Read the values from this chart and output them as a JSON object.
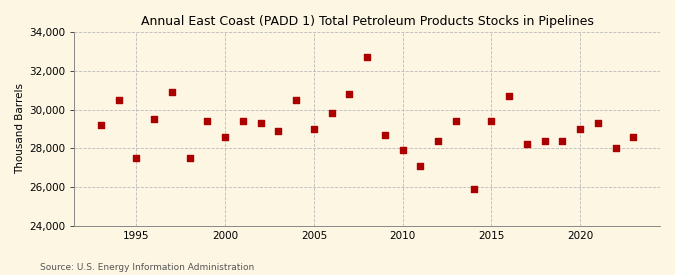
{
  "title": "Annual East Coast (PADD 1) Total Petroleum Products Stocks in Pipelines",
  "ylabel": "Thousand Barrels",
  "source": "Source: U.S. Energy Information Administration",
  "background_color": "#fdf6e3",
  "plot_bg_color": "#fdf6e3",
  "marker_color": "#aa0000",
  "ylim": [
    24000,
    34000
  ],
  "yticks": [
    24000,
    26000,
    28000,
    30000,
    32000,
    34000
  ],
  "xlim": [
    1991.5,
    2024.5
  ],
  "xticks": [
    1995,
    2000,
    2005,
    2010,
    2015,
    2020
  ],
  "years": [
    1993,
    1994,
    1995,
    1996,
    1997,
    1998,
    1999,
    2000,
    2001,
    2002,
    2003,
    2004,
    2005,
    2006,
    2007,
    2008,
    2009,
    2010,
    2011,
    2012,
    2013,
    2014,
    2015,
    2016,
    2017,
    2018,
    2019,
    2020,
    2021,
    2022,
    2023
  ],
  "values": [
    29200,
    30500,
    27500,
    29500,
    30900,
    27500,
    29400,
    28600,
    29400,
    29300,
    28900,
    30500,
    29000,
    29800,
    30800,
    32700,
    28700,
    27900,
    27100,
    28400,
    29400,
    25900,
    29400,
    30700,
    28200,
    28400,
    28400,
    29000,
    29300,
    28000,
    28600
  ],
  "title_fontsize": 9,
  "ylabel_fontsize": 7.5,
  "tick_fontsize": 7.5,
  "source_fontsize": 6.5,
  "marker_size": 16
}
